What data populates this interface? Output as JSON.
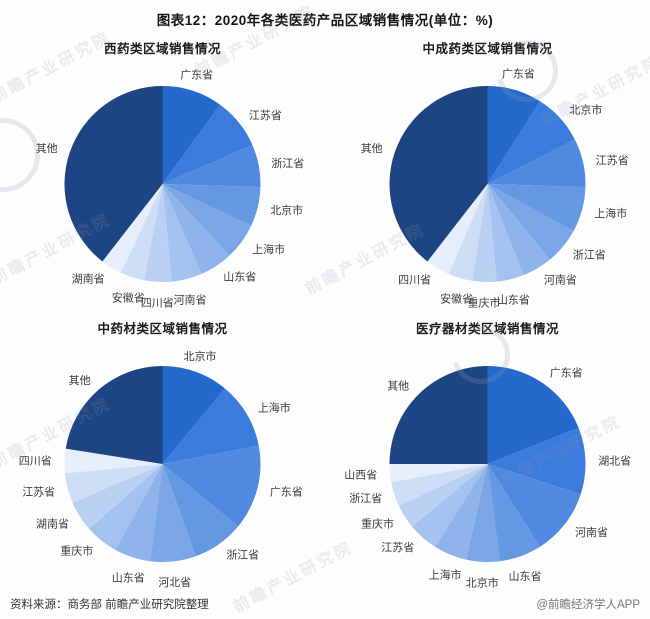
{
  "page": {
    "title": "图表12：2020年各类医药产品区域销售情况(单位：%)",
    "footer": {
      "source": "资料来源：商务部 前瞻产业研究院整理",
      "brand": "@前瞻经济学人APP"
    },
    "watermark": {
      "text": "前瞻产业研究院"
    }
  },
  "palette": {
    "series": [
      "#2569cc",
      "#3b7bdb",
      "#5089df",
      "#6598e3",
      "#7aa6e7",
      "#8fb4eb",
      "#a4c2ef",
      "#b9d0f3",
      "#cfdef7",
      "#e7eefb"
    ],
    "other": "#1e4583",
    "label_color": "#3c3c3c"
  },
  "chart_data": [
    {
      "type": "pie",
      "title": "西药类区域销售情况",
      "unit": "%",
      "labels": [
        "广东省",
        "江苏省",
        "浙江省",
        "北京市",
        "上海市",
        "山东省",
        "河南省",
        "四川省",
        "安徽省",
        "湖南省",
        "其他"
      ],
      "values": [
        10,
        8.5,
        7,
        6.5,
        6,
        5.5,
        5,
        4.5,
        4,
        3.5,
        39.5
      ],
      "legend": "none",
      "start_angle_deg": 0,
      "direction": "clockwise"
    },
    {
      "type": "pie",
      "title": "中成药类区域销售情况",
      "unit": "%",
      "labels": [
        "广东省",
        "北京市",
        "江苏省",
        "上海市",
        "浙江省",
        "河南省",
        "山东省",
        "重庆市",
        "安徽省",
        "四川省",
        "其他"
      ],
      "values": [
        9,
        8.5,
        8,
        7.5,
        6,
        5,
        4.5,
        4,
        4,
        4,
        39.5
      ],
      "legend": "none",
      "start_angle_deg": 0,
      "direction": "clockwise"
    },
    {
      "type": "pie",
      "title": "中药材类区域销售情况",
      "unit": "%",
      "labels": [
        "北京市",
        "上海市",
        "广东省",
        "浙江省",
        "河北省",
        "山东省",
        "重庆市",
        "湖南省",
        "江苏省",
        "四川省",
        "其他"
      ],
      "values": [
        11,
        11,
        14,
        8.5,
        7.5,
        6,
        5.5,
        5,
        5,
        4,
        22.5
      ],
      "legend": "none",
      "start_angle_deg": 0,
      "direction": "clockwise"
    },
    {
      "type": "pie",
      "title": "医疗器材类区域销售情况",
      "unit": "%",
      "labels": [
        "广东省",
        "湖北省",
        "河南省",
        "山东省",
        "北京市",
        "上海市",
        "江苏省",
        "重庆市",
        "浙江省",
        "山西省",
        "其他"
      ],
      "values": [
        19,
        11,
        11,
        7,
        5.5,
        5.5,
        5,
        4,
        4,
        3,
        25
      ],
      "legend": "none",
      "start_angle_deg": 0,
      "direction": "clockwise"
    }
  ]
}
